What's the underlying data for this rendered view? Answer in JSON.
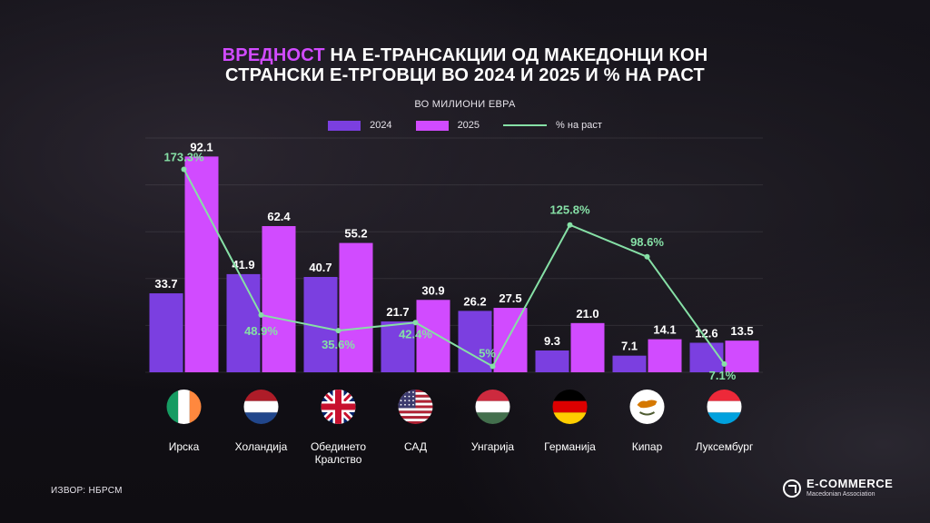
{
  "title": {
    "highlight": "ВРЕДНОСТ",
    "line1_rest": " НА Е-ТРАНСАКЦИИ ОД МАКЕДОНЦИ КОН",
    "line2": "СТРАНСКИ Е-ТРГОВЦИ ВО 2024 И 2025 И % НА РАСТ"
  },
  "subtitle": "ВО МИЛИОНИ ЕВРА",
  "source": "ИЗВОР: НБРСМ",
  "logo": {
    "name": "E-COMMERCE",
    "tagline": "Macedonian Association",
    "icon": "ecommerce-logo-icon"
  },
  "colors": {
    "series2024": "#7b3fe0",
    "series2025": "#d14bff",
    "growth": "#86e0a6",
    "highlight": "#d14bff"
  },
  "legend": {
    "label2024": "2024",
    "label2025": "2025",
    "labelGrowth": "% на раст"
  },
  "chart_data": {
    "type": "bar",
    "categories": [
      "Ирска",
      "Холандија",
      "Обединето Кралство",
      "САД",
      "Унгарија",
      "Германија",
      "Кипар",
      "Луксембург"
    ],
    "category_lines": [
      [
        "Ирска"
      ],
      [
        "Холандија"
      ],
      [
        "Обединето",
        "Кралство"
      ],
      [
        "САД"
      ],
      [
        "Унгарија"
      ],
      [
        "Германија"
      ],
      [
        "Кипар"
      ],
      [
        "Луксембург"
      ]
    ],
    "flags": [
      "ireland-flag-icon",
      "netherlands-flag-icon",
      "uk-flag-icon",
      "usa-flag-icon",
      "hungary-flag-icon",
      "germany-flag-icon",
      "cyprus-flag-icon",
      "luxembourg-flag-icon"
    ],
    "series": [
      {
        "name": "2024",
        "values": [
          33.7,
          41.9,
          40.7,
          21.7,
          26.2,
          9.3,
          7.1,
          12.6
        ],
        "labels": [
          "33.7",
          "41.9",
          "40.7",
          "21.7",
          "26.2",
          "9.3",
          "7.1",
          "12.6"
        ]
      },
      {
        "name": "2025",
        "values": [
          92.1,
          62.4,
          55.2,
          30.9,
          27.5,
          21.0,
          14.1,
          13.5
        ],
        "labels": [
          "92.1",
          "62.4",
          "55.2",
          "30.9",
          "27.5",
          "21.0",
          "14.1",
          "13.5"
        ]
      }
    ],
    "growth": {
      "name": "% на раст",
      "type": "line",
      "values": [
        173.3,
        48.9,
        35.6,
        42.4,
        5,
        125.8,
        98.6,
        7.1
      ],
      "labels": [
        "173.3%",
        "48.9%",
        "35.6%",
        "42.4%",
        "5%",
        "125.8%",
        "98.6%",
        "7.1%"
      ]
    },
    "ylim": [
      0,
      100
    ],
    "grid": true,
    "legend_position": "top-center"
  }
}
